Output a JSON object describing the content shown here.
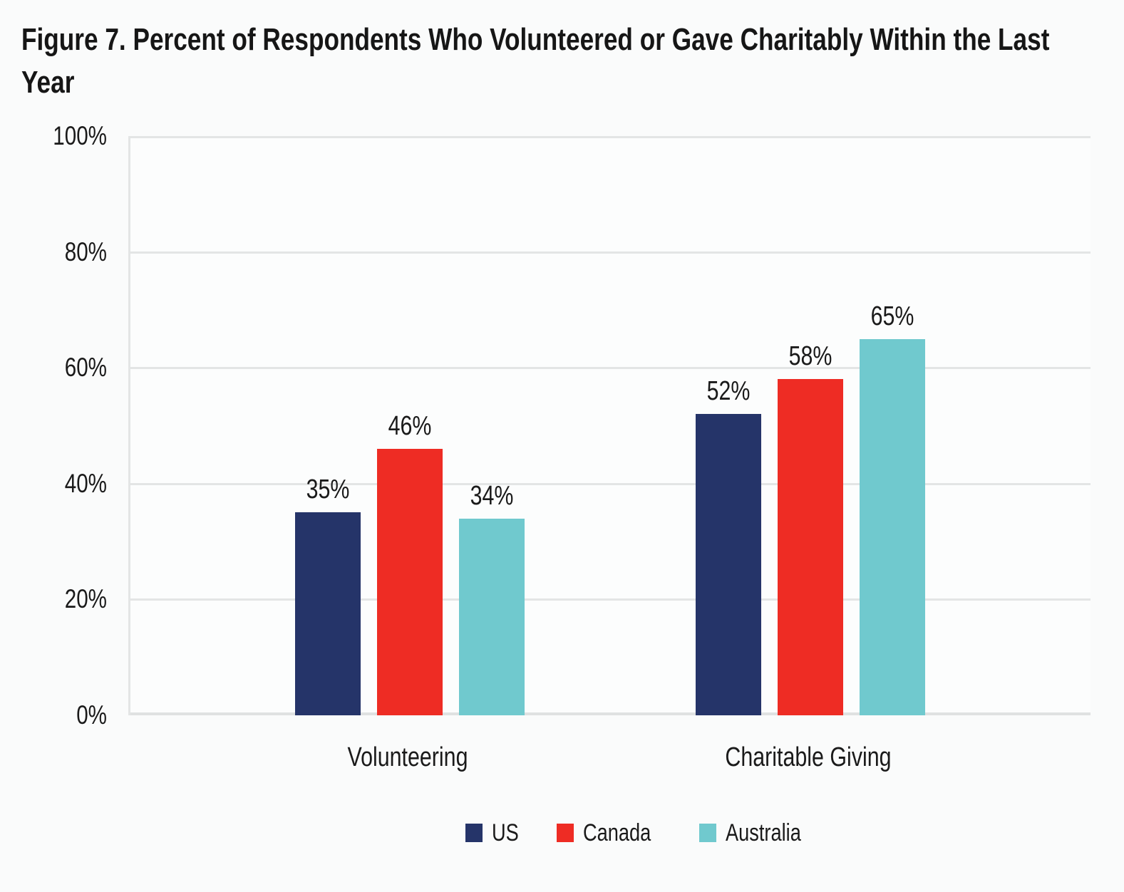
{
  "chart_data": {
    "type": "bar",
    "title": "Figure 7. Percent of Respondents Who Volunteered or Gave Charitably Within the Last Year",
    "categories": [
      "Volunteering",
      "Charitable Giving"
    ],
    "series": [
      {
        "name": "US",
        "color": "#253469",
        "values": [
          35,
          52
        ]
      },
      {
        "name": "Canada",
        "color": "#ee2c24",
        "values": [
          46,
          58
        ]
      },
      {
        "name": "Australia",
        "color": "#70c9ce",
        "values": [
          34,
          65
        ]
      }
    ],
    "value_suffix": "%",
    "xlabel": "",
    "ylabel": "",
    "ylim": [
      0,
      100
    ],
    "yticks": [
      0,
      20,
      40,
      60,
      80,
      100
    ],
    "ytick_suffix": "%",
    "grid": true,
    "legend_position": "bottom"
  },
  "colors": {
    "background": "#fafbfb",
    "plot_background": "#fcfdfd",
    "gridline": "#e3e5e5",
    "baseline": "#dfe1e1",
    "text": "#1a1a1a"
  }
}
